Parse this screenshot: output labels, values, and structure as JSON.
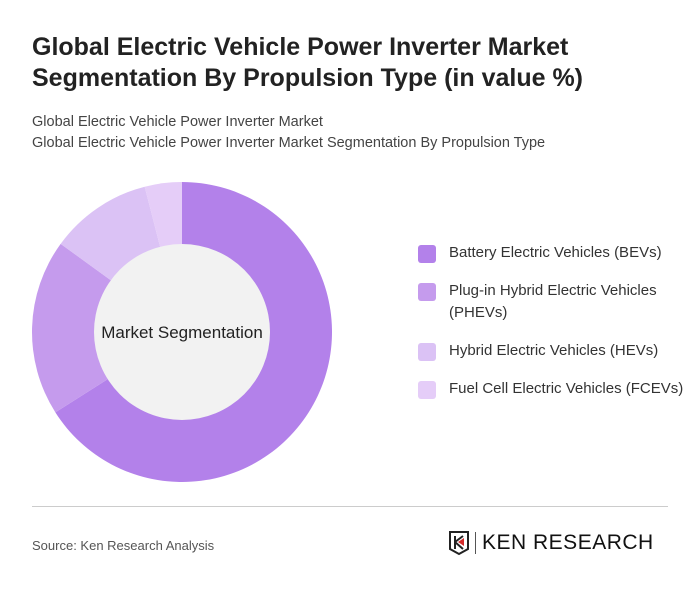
{
  "title": "Global Electric Vehicle Power Inverter Market Segmentation By Propulsion Type (in value %)",
  "subtitle1": "Global Electric Vehicle Power Inverter Market",
  "subtitle2": "Global Electric Vehicle Power Inverter Market Segmentation By Propulsion Type",
  "chart_data": {
    "type": "pie",
    "variant": "donut",
    "center_label": "Market Segmentation",
    "categories": [
      "Battery Electric Vehicles (BEVs)",
      "Plug-in Hybrid Electric Vehicles (PHEVs)",
      "Hybrid Electric Vehicles (HEVs)",
      "Fuel Cell Electric Vehicles (FCEVs)"
    ],
    "values": [
      66,
      19,
      11,
      4
    ],
    "colors": [
      "#b381ea",
      "#c59bed",
      "#dbc2f5",
      "#e5cdf8"
    ],
    "legend_placement": "right"
  },
  "source": "Source: Ken Research Analysis",
  "logo_text": "KEN RESEARCH"
}
